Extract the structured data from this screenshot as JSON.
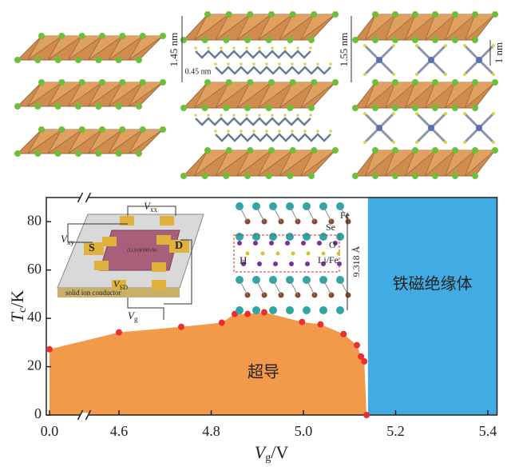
{
  "top_panels": {
    "layer_spacing_1": "1.45 nm",
    "chain_width": "0.45 nm",
    "layer_spacing_2": "1.55 nm",
    "molecule_size": "1 nm"
  },
  "chart_data": {
    "type": "area",
    "x": [
      0.0,
      4.6,
      4.735,
      4.823,
      4.851,
      4.879,
      4.915,
      4.997,
      5.037,
      5.087,
      5.116,
      5.125,
      5.132,
      5.137
    ],
    "series": [
      {
        "values": [
          27.2,
          34.2,
          36.5,
          38.2,
          41.8,
          41.8,
          42.5,
          38.5,
          37.5,
          33.5,
          28.9,
          24.2,
          22.2,
          0
        ],
        "color": "#f39a4a",
        "marker_color": "#e8302f"
      }
    ],
    "xlim": [
      0,
      5.42
    ],
    "ylim": [
      0,
      90
    ],
    "xticks": [
      {
        "value": 0,
        "label": "0.0"
      },
      4.6,
      4.8,
      {
        "value": 5,
        "label": "5.0"
      },
      5.2,
      5.4
    ],
    "yticks": [
      0,
      20,
      40,
      60,
      80
    ],
    "x_break": true,
    "x_label": {
      "symbol": "V",
      "sub": "g",
      "unit": "/V"
    },
    "y_label": {
      "symbol": "T",
      "sub": "c",
      "unit": "/K"
    },
    "region": {
      "x": [
        5.14,
        5.42
      ],
      "color": "#40ace3",
      "label": "铁磁绝缘体"
    },
    "area_label": "超导",
    "device_inset": {
      "vxx": [
        "V",
        "xx"
      ],
      "vxy": [
        "V",
        "xy"
      ],
      "source": "S",
      "drain": "D",
      "vsd": [
        "V",
        "SD"
      ],
      "substrate": "solid ion conductor",
      "vg": [
        "V",
        "g"
      ],
      "sample": "(Li,Fe)OHFeSe"
    },
    "crystal_inset": {
      "fe": "Fe",
      "se": "Se",
      "o": "O",
      "h": "H",
      "life": "Li/Fe",
      "spacing": "9.318 Å"
    }
  }
}
